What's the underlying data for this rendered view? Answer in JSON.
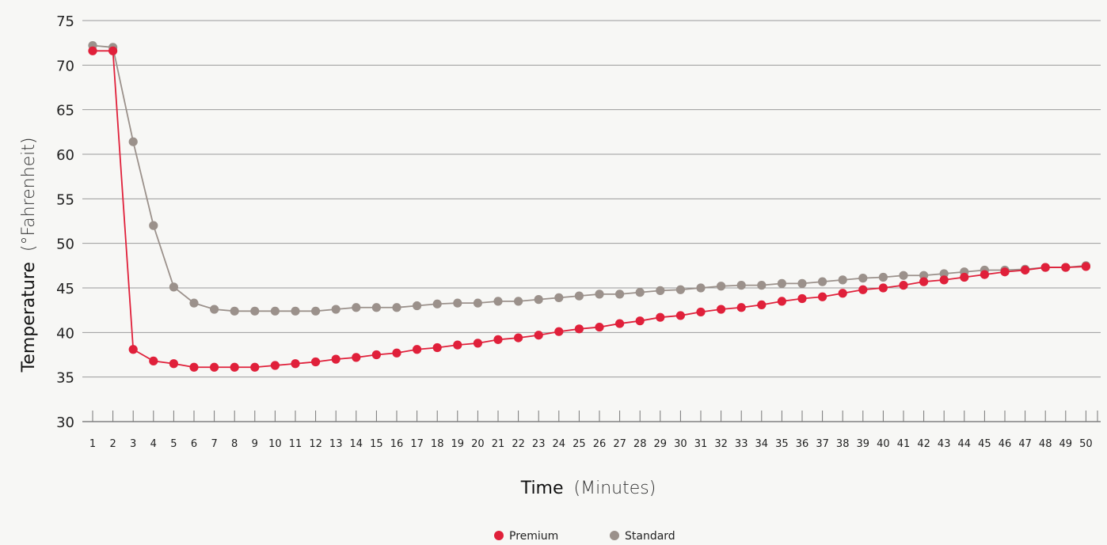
{
  "chart_data": {
    "type": "line",
    "title": "",
    "xlabel": "Time",
    "xlabel_unit": "(Minutes)",
    "ylabel": "Temperature",
    "ylabel_unit": "(°Fahrenheit)",
    "ylim": [
      30,
      75
    ],
    "y_ticks": [
      30,
      35,
      40,
      45,
      50,
      55,
      60,
      65,
      70,
      75
    ],
    "x": [
      1,
      2,
      3,
      4,
      5,
      6,
      7,
      8,
      9,
      10,
      11,
      12,
      13,
      14,
      15,
      16,
      17,
      18,
      19,
      20,
      21,
      22,
      23,
      24,
      25,
      26,
      27,
      28,
      29,
      30,
      31,
      32,
      33,
      34,
      35,
      36,
      37,
      38,
      39,
      40,
      41,
      42,
      43,
      44,
      45,
      46,
      47,
      48,
      49,
      50
    ],
    "grid": true,
    "legend_position": "bottom-center",
    "series": [
      {
        "name": "Premium",
        "color": "#e0203a",
        "values": [
          71.6,
          71.6,
          38.1,
          36.8,
          36.5,
          36.1,
          36.1,
          36.1,
          36.1,
          36.3,
          36.5,
          36.7,
          37.0,
          37.2,
          37.5,
          37.7,
          38.1,
          38.3,
          38.6,
          38.8,
          39.2,
          39.4,
          39.7,
          40.1,
          40.4,
          40.6,
          41.0,
          41.3,
          41.7,
          41.9,
          42.3,
          42.6,
          42.8,
          43.1,
          43.5,
          43.8,
          44.0,
          44.4,
          44.8,
          45.0,
          45.3,
          45.7,
          45.9,
          46.2,
          46.5,
          46.8,
          47.0,
          47.3,
          47.3,
          47.4
        ]
      },
      {
        "name": "Standard",
        "color": "#9b918b",
        "values": [
          72.2,
          72.0,
          61.4,
          52.0,
          45.1,
          43.3,
          42.6,
          42.4,
          42.4,
          42.4,
          42.4,
          42.4,
          42.6,
          42.8,
          42.8,
          42.8,
          43.0,
          43.2,
          43.3,
          43.3,
          43.5,
          43.5,
          43.7,
          43.9,
          44.1,
          44.3,
          44.3,
          44.5,
          44.7,
          44.8,
          45.0,
          45.2,
          45.3,
          45.3,
          45.5,
          45.5,
          45.7,
          45.9,
          46.1,
          46.2,
          46.4,
          46.4,
          46.6,
          46.8,
          47.0,
          47.0,
          47.1,
          47.3,
          47.3,
          47.5
        ]
      }
    ]
  }
}
